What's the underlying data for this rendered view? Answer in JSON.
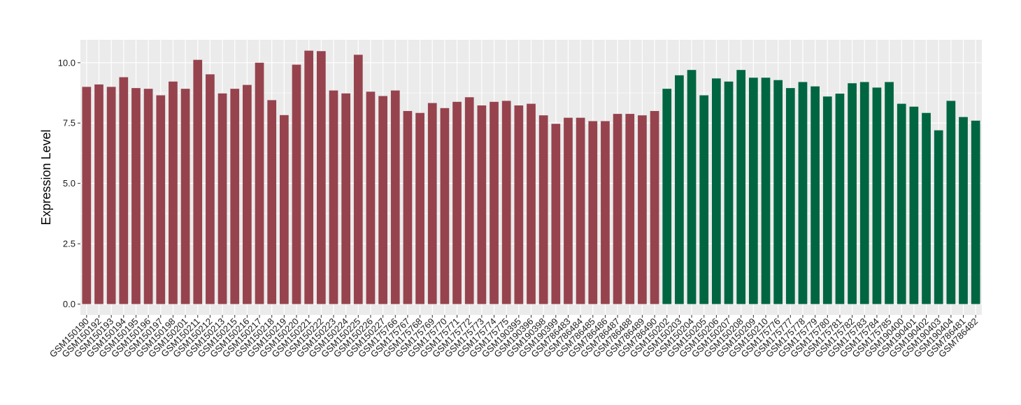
{
  "chart_data": {
    "type": "bar",
    "ylabel": "Expression Level",
    "xlabel": "",
    "ylim": [
      -0.45,
      10.95
    ],
    "yticks": [
      0.0,
      2.5,
      5.0,
      7.5,
      10.0
    ],
    "ytick_labels": [
      "0.0",
      "2.5",
      "5.0",
      "7.5",
      "10.0"
    ],
    "grid": true,
    "legend": "none",
    "colors": {
      "group_red": "#96434e",
      "group_green": "#006641",
      "panel_bg": "#ebebeb",
      "grid": "#ffffff"
    },
    "categories": [
      "GSM150190",
      "GSM150192",
      "GSM150193",
      "GSM150194",
      "GSM150195",
      "GSM150196",
      "GSM150197",
      "GSM150198",
      "GSM150201",
      "GSM150211",
      "GSM150212",
      "GSM150213",
      "GSM150215",
      "GSM150216",
      "GSM150217",
      "GSM150218",
      "GSM150219",
      "GSM150220",
      "GSM150221",
      "GSM150222",
      "GSM150223",
      "GSM150224",
      "GSM150225",
      "GSM150226",
      "GSM150227",
      "GSM175766",
      "GSM175767",
      "GSM175768",
      "GSM175769",
      "GSM175770",
      "GSM175771",
      "GSM175772",
      "GSM175773",
      "GSM175774",
      "GSM175775",
      "GSM190395",
      "GSM190396",
      "GSM190398",
      "GSM190399",
      "GSM786483",
      "GSM786484",
      "GSM786485",
      "GSM786486",
      "GSM786487",
      "GSM786488",
      "GSM786489",
      "GSM786490",
      "GSM150202",
      "GSM150203",
      "GSM150204",
      "GSM150205",
      "GSM150206",
      "GSM150207",
      "GSM150208",
      "GSM150209",
      "GSM150210",
      "GSM175776",
      "GSM175777",
      "GSM175778",
      "GSM175779",
      "GSM175780",
      "GSM175781",
      "GSM175782",
      "GSM175783",
      "GSM175784",
      "GSM175785",
      "GSM190400",
      "GSM190401",
      "GSM190402",
      "GSM190403",
      "GSM190404",
      "GSM786481",
      "GSM786482"
    ],
    "values": [
      9.0,
      9.1,
      9.0,
      9.4,
      8.95,
      8.92,
      8.65,
      9.22,
      8.92,
      10.12,
      9.52,
      8.73,
      8.92,
      9.08,
      10.0,
      8.45,
      7.83,
      9.92,
      10.5,
      10.48,
      8.85,
      8.73,
      10.33,
      8.8,
      8.62,
      8.85,
      8.0,
      7.92,
      8.33,
      8.12,
      8.38,
      8.57,
      8.23,
      8.38,
      8.42,
      8.23,
      8.3,
      7.82,
      7.47,
      7.72,
      7.72,
      7.58,
      7.58,
      7.88,
      7.88,
      7.82,
      8.0,
      8.92,
      9.48,
      9.7,
      8.65,
      9.35,
      9.22,
      9.7,
      9.38,
      9.38,
      9.28,
      8.95,
      9.2,
      9.02,
      8.6,
      8.72,
      9.15,
      9.2,
      8.97,
      9.2,
      8.3,
      8.18,
      7.92,
      7.2,
      8.42,
      7.75,
      7.6
    ],
    "groups": [
      "red",
      "red",
      "red",
      "red",
      "red",
      "red",
      "red",
      "red",
      "red",
      "red",
      "red",
      "red",
      "red",
      "red",
      "red",
      "red",
      "red",
      "red",
      "red",
      "red",
      "red",
      "red",
      "red",
      "red",
      "red",
      "red",
      "red",
      "red",
      "red",
      "red",
      "red",
      "red",
      "red",
      "red",
      "red",
      "red",
      "red",
      "red",
      "red",
      "red",
      "red",
      "red",
      "red",
      "red",
      "red",
      "red",
      "red",
      "green",
      "green",
      "green",
      "green",
      "green",
      "green",
      "green",
      "green",
      "green",
      "green",
      "green",
      "green",
      "green",
      "green",
      "green",
      "green",
      "green",
      "green",
      "green",
      "green",
      "green",
      "green",
      "green",
      "green",
      "green",
      "green"
    ]
  }
}
